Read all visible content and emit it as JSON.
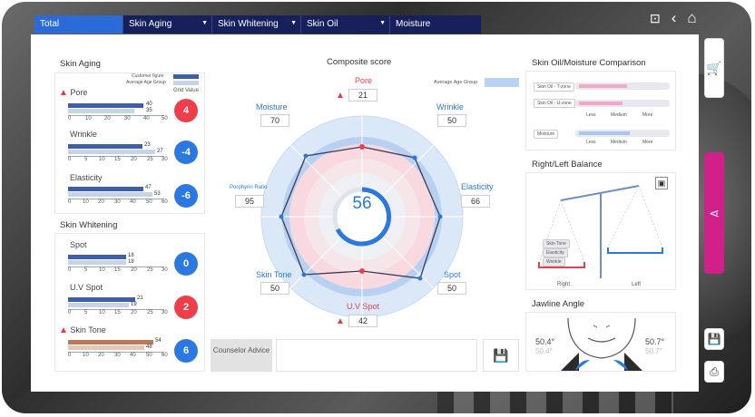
{
  "tabs": [
    {
      "label": "Total"
    },
    {
      "label": "Skin Aging"
    },
    {
      "label": "Skin Whitening"
    },
    {
      "label": "Skin Oil"
    },
    {
      "label": "Moisture"
    }
  ],
  "skin_aging": {
    "title": "Skin Aging",
    "legend_customer": "Customer figure",
    "legend_avg": "Average Age Group",
    "grid_value": "Grid Value",
    "items": [
      {
        "label": "Pore",
        "v1": "40",
        "v2": "35",
        "score": "4",
        "warn": true
      },
      {
        "label": "Wrinkle",
        "v1": "23",
        "v2": "27",
        "score": "-4",
        "warn": false
      },
      {
        "label": "Elasticity",
        "v1": "47",
        "v2": "53",
        "score": "-6",
        "warn": false
      }
    ],
    "ticks": [
      "0",
      "10",
      "20",
      "30",
      "40",
      "50"
    ],
    "ticks2": [
      "0",
      "5",
      "10",
      "15",
      "20",
      "25",
      "30"
    ],
    "ticks3": [
      "0",
      "10",
      "20",
      "30",
      "40",
      "50",
      "60"
    ]
  },
  "skin_whitening": {
    "title": "Skin Whitening",
    "items": [
      {
        "label": "Spot",
        "v1": "18",
        "v2": "18",
        "score": "0"
      },
      {
        "label": "U.V Spot",
        "v1": "21",
        "v2": "19",
        "score": "2"
      },
      {
        "label": "Skin Tone",
        "v1": "54",
        "v2": "48",
        "score": "6"
      }
    ],
    "ticks": [
      "0",
      "5",
      "10",
      "15",
      "20",
      "25",
      "30"
    ],
    "ticks3": [
      "0",
      "10",
      "20",
      "30",
      "40",
      "50",
      "60"
    ]
  },
  "composite": {
    "title": "Composite score",
    "avg_label": "Average Age Group",
    "score": "56",
    "pore_label": "Pore",
    "pore": "21",
    "moisture_label": "Moisture",
    "moisture": "70",
    "wrinkle_label": "Wrinkle",
    "wrinkle": "50",
    "porphyrin_label": "Porphyrin Ratio",
    "porphyrin": "95",
    "elasticity_label": "Elasticity",
    "elasticity": "66",
    "skintone_label": "Skin Tone",
    "skintone": "50",
    "spot_label": "Spot",
    "spot": "50",
    "uvspot_label": "U.V Spot",
    "uvspot": "42"
  },
  "counselor_label": "Counselor Advice",
  "oil": {
    "title": "Skin Oil/Moisture Comparison",
    "rows": [
      "Skin Oil - T-zone",
      "Skin Oil - U-zone",
      "Moisture"
    ],
    "levels": [
      "Less",
      "Medium",
      "More"
    ],
    "fills": [
      0.55,
      0.5,
      0.58
    ]
  },
  "balance": {
    "title": "Right/Left Balance",
    "items": [
      "Skin Tone",
      "Elasticity",
      "Wrinkle"
    ],
    "right": "Right",
    "left": "Left"
  },
  "jawline": {
    "title": "Jawline Angle",
    "right": "50.4°",
    "left": "50.7°",
    "right2": "50.4°",
    "left2": "50.7°"
  },
  "colors": {
    "navy": "#16205c",
    "blue": "#2a78e0",
    "red": "#ee3e4a",
    "pink": "#d0208a"
  }
}
